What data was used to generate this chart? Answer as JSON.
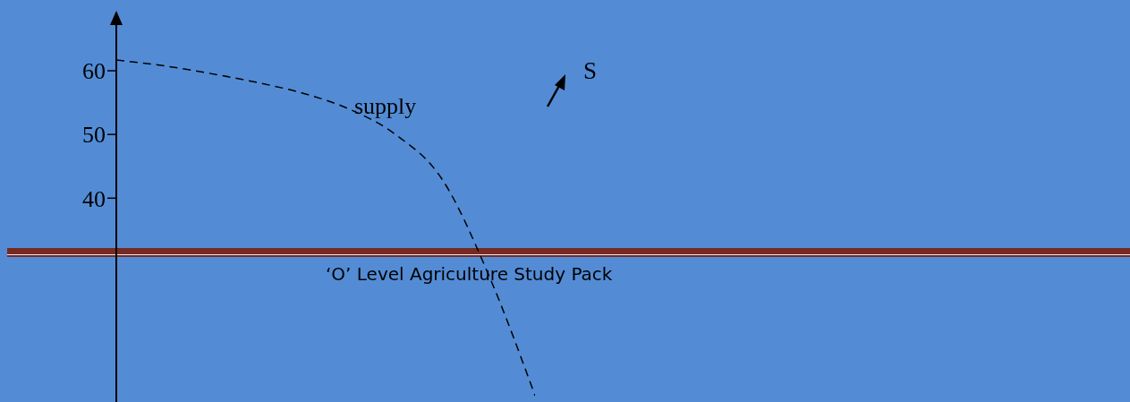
{
  "chart_data": {
    "type": "line",
    "categories": [
      null,
      null,
      null,
      null,
      null,
      null,
      null,
      null,
      null,
      null
    ],
    "series": [
      {
        "name": "supply",
        "color": "#000000",
        "values": [
          61.7,
          60.8,
          59.6,
          58.2,
          56.5,
          54,
          50,
          43,
          28,
          9
        ]
      }
    ],
    "ylim": [
      8,
      69
    ],
    "yticks": [
      40,
      50,
      60
    ],
    "line_style": "dashed",
    "marker": "none",
    "grid": false,
    "legend": false,
    "annotations": [
      "S",
      "‘O’ Level Agriculture Study Pack"
    ]
  }
}
